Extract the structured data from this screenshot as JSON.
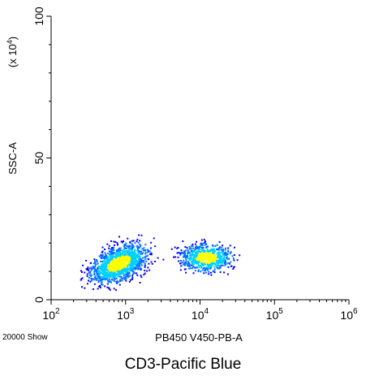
{
  "caption": "CD3-Pacific Blue",
  "event_count_label": "20000 Show",
  "colors": {
    "axis": "#000000",
    "density_low": "#0000ff",
    "density_mid": "#00d0ff",
    "density_high": "#ffff00"
  },
  "chart_data": {
    "type": "scatter",
    "subtype": "flow-cytometry-density-dot-plot",
    "xlabel": "PB450 V450-PB-A",
    "ylabel": "SSC-A",
    "y_multiplier_label": "(x 10^4)",
    "x_scale": "log",
    "xlim": [
      100,
      1000000
    ],
    "ylim": [
      0,
      100
    ],
    "x_ticks": [
      {
        "base": "10",
        "exp": "2",
        "value": 100
      },
      {
        "base": "10",
        "exp": "3",
        "value": 1000
      },
      {
        "base": "10",
        "exp": "4",
        "value": 10000
      },
      {
        "base": "10",
        "exp": "5",
        "value": 100000
      },
      {
        "base": "10",
        "exp": "6",
        "value": 1000000
      }
    ],
    "y_ticks": [
      {
        "label": "0",
        "value": 0
      },
      {
        "label": "50",
        "value": 50
      },
      {
        "label": "100",
        "value": 100
      }
    ],
    "populations": [
      {
        "center_x": 800,
        "center_y": 13,
        "spread_log_x": 0.32,
        "spread_y": 5,
        "points": 1400
      },
      {
        "center_x": 12000,
        "center_y": 15,
        "spread_log_x": 0.28,
        "spread_y": 4,
        "points": 700
      }
    ],
    "grid": false,
    "legend": "none"
  }
}
